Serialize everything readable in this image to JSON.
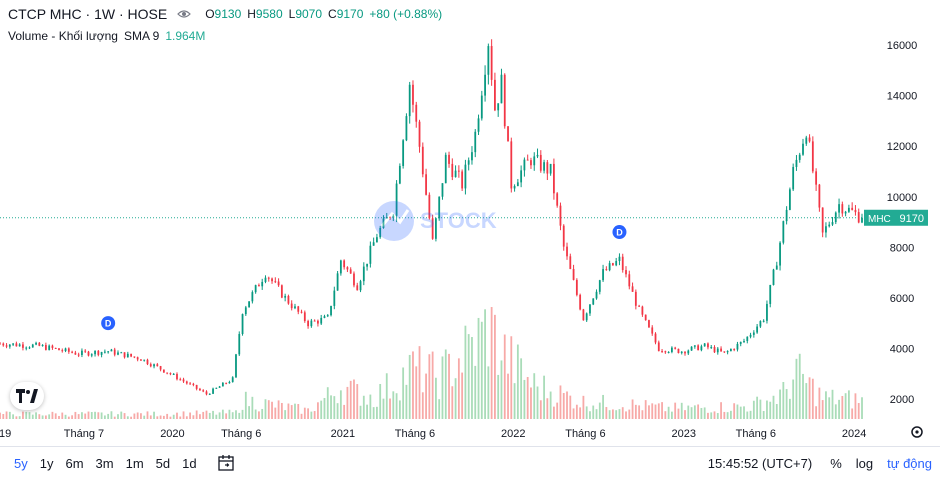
{
  "header": {
    "title": "CTCP MHC · 1W · HOSE",
    "open_label": "O",
    "open": "9130",
    "high_label": "H",
    "high": "9580",
    "low_label": "L",
    "low": "9070",
    "close_label": "C",
    "close": "9170",
    "change": "+80 (+0.88%)"
  },
  "volume_legend": {
    "label": "Volume - Khối lượng",
    "sma": "SMA 9",
    "value": "1.964M"
  },
  "price_tag": {
    "symbol": "MHC",
    "value": "9170"
  },
  "dividend_marker": "D",
  "watermark_text": "STOCK",
  "toolbar": {
    "ranges": [
      "5y",
      "1y",
      "6m",
      "3m",
      "1m",
      "5d",
      "1d"
    ],
    "active_range": "5y",
    "time": "15:45:52 (UTC+7)",
    "percent": "%",
    "log": "log",
    "auto": "tự động"
  },
  "colors": {
    "up": "#089981",
    "down": "#f23645",
    "vol_up": "#a9dcb8",
    "vol_down": "#f7a9a7",
    "accent": "#2962ff",
    "price_line": "#22ab94"
  },
  "chart_data": {
    "type": "candlestick",
    "interval": "1W",
    "y_axis_ticks": [
      2000,
      4000,
      6000,
      8000,
      10000,
      12000,
      14000,
      16000
    ],
    "ylim": [
      1100,
      17300
    ],
    "x_axis_labels": [
      {
        "label": "019",
        "date": "2019-01-07"
      },
      {
        "label": "Tháng 7",
        "date": "2019-07-01"
      },
      {
        "label": "2020",
        "date": "2020-01-06"
      },
      {
        "label": "Tháng 6",
        "date": "2020-06-01"
      },
      {
        "label": "2021",
        "date": "2021-01-04"
      },
      {
        "label": "Tháng 6",
        "date": "2021-06-07"
      },
      {
        "label": "2022",
        "date": "2022-01-03"
      },
      {
        "label": "Tháng 6",
        "date": "2022-06-06"
      },
      {
        "label": "2023",
        "date": "2023-01-02"
      },
      {
        "label": "Tháng 6",
        "date": "2023-06-05"
      },
      {
        "label": "2024",
        "date": "2024-01-01"
      }
    ],
    "x_start": "2019-01-07",
    "x_end": "2024-01-22",
    "last_price": 9170,
    "dividend_dates": [
      "2019-08-26",
      "2022-08-22"
    ],
    "price_anchors": [
      [
        "2019-01-07",
        4200
      ],
      [
        "2019-04-01",
        4100
      ],
      [
        "2019-06-24",
        3800
      ],
      [
        "2019-08-26",
        3900
      ],
      [
        "2019-11-04",
        3600
      ],
      [
        "2020-01-06",
        3000
      ],
      [
        "2020-03-23",
        2200
      ],
      [
        "2020-05-18",
        2800
      ],
      [
        "2020-06-08",
        5500
      ],
      [
        "2020-07-27",
        7000
      ],
      [
        "2020-09-07",
        6000
      ],
      [
        "2020-10-26",
        5000
      ],
      [
        "2020-12-07",
        5200
      ],
      [
        "2021-01-04",
        7500
      ],
      [
        "2021-02-08",
        6500
      ],
      [
        "2021-03-22",
        8500
      ],
      [
        "2021-04-26",
        9500
      ],
      [
        "2021-05-31",
        14500
      ],
      [
        "2021-06-21",
        12000
      ],
      [
        "2021-07-19",
        8200
      ],
      [
        "2021-08-16",
        11500
      ],
      [
        "2021-09-20",
        10500
      ],
      [
        "2021-10-18",
        12500
      ],
      [
        "2021-11-15",
        16200
      ],
      [
        "2021-11-29",
        13500
      ],
      [
        "2021-12-13",
        14500
      ],
      [
        "2022-01-03",
        10500
      ],
      [
        "2022-02-14",
        11500
      ],
      [
        "2022-03-28",
        11000
      ],
      [
        "2022-04-25",
        8000
      ],
      [
        "2022-06-06",
        5200
      ],
      [
        "2022-07-18",
        7000
      ],
      [
        "2022-08-22",
        7500
      ],
      [
        "2022-10-03",
        5500
      ],
      [
        "2022-11-14",
        4000
      ],
      [
        "2023-01-02",
        3900
      ],
      [
        "2023-02-20",
        4100
      ],
      [
        "2023-04-03",
        3800
      ],
      [
        "2023-05-15",
        4300
      ],
      [
        "2023-06-26",
        5200
      ],
      [
        "2023-07-24",
        7500
      ],
      [
        "2023-08-28",
        11000
      ],
      [
        "2023-09-25",
        12700
      ],
      [
        "2023-10-30",
        8500
      ],
      [
        "2023-12-04",
        9700
      ],
      [
        "2024-01-22",
        9170
      ]
    ],
    "volume_anchors": [
      [
        "2019-01-07",
        0.12
      ],
      [
        "2019-12-30",
        0.12
      ],
      [
        "2020-05-25",
        0.15
      ],
      [
        "2020-06-08",
        0.45
      ],
      [
        "2020-08-03",
        0.35
      ],
      [
        "2020-10-26",
        0.2
      ],
      [
        "2021-01-04",
        0.75
      ],
      [
        "2021-03-15",
        0.5
      ],
      [
        "2021-06-07",
        1.2
      ],
      [
        "2021-08-02",
        1.0
      ],
      [
        "2021-10-25",
        1.85
      ],
      [
        "2021-11-15",
        2.2
      ],
      [
        "2021-12-13",
        1.6
      ],
      [
        "2022-02-21",
        0.8
      ],
      [
        "2022-06-06",
        0.4
      ],
      [
        "2022-09-05",
        0.35
      ],
      [
        "2022-12-05",
        0.25
      ],
      [
        "2023-05-29",
        0.3
      ],
      [
        "2023-08-07",
        0.6
      ],
      [
        "2023-09-04",
        1.1
      ],
      [
        "2023-10-30",
        0.5
      ],
      [
        "2024-01-22",
        0.45
      ]
    ]
  }
}
